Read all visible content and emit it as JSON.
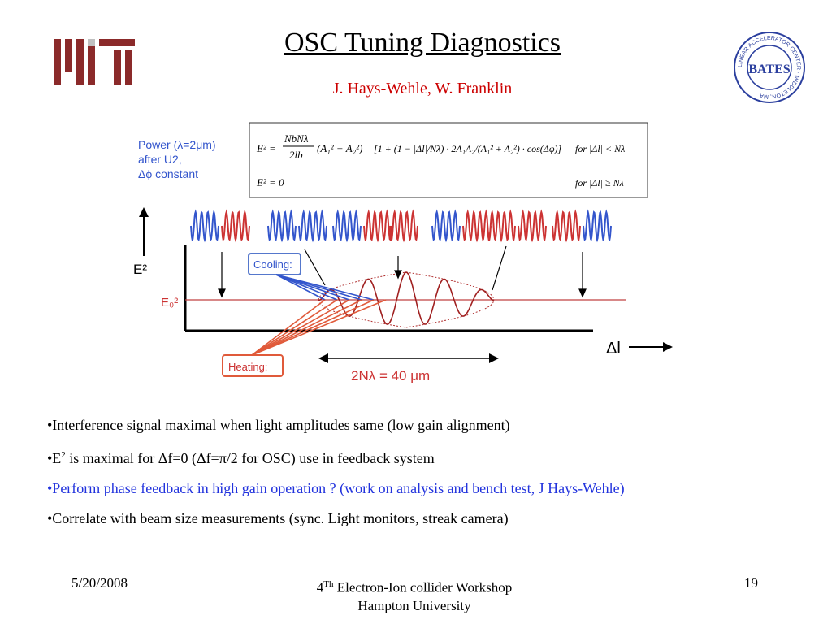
{
  "slide": {
    "title": "OSC Tuning Diagnostics",
    "authors": "J. Hays-Wehle, W. Franklin"
  },
  "logos": {
    "left": {
      "icon": "mit-logo",
      "color": "#8b2a2a"
    },
    "right": {
      "icon": "bates-seal",
      "outer_text": "LINEAR ACCELERATOR CENTER · MIDDLETON, MA",
      "center_text": "BATES",
      "color": "#2b3f9e"
    }
  },
  "figure": {
    "power_label": {
      "line1": "Power (λ=2μm)",
      "line2": "after U2,",
      "line3": "Δϕ constant"
    },
    "formula": {
      "eq1_lhs": "E² =",
      "eq1_frac1_num": "NbNλ",
      "eq1_frac1_den": "2lb",
      "eq1_amp_sum": "(A₁² + A₂²)",
      "eq1_bracket": "[1 + (1 − |Δl|/Nλ) · 2A₁A₂/(A₁² + A₂²) · cos(Δφ)]",
      "eq1_cond": "for |Δl| < Nλ",
      "eq2_lhs": "E² = 0",
      "eq2_cond": "for |Δl| ≥ Nλ"
    },
    "e2_label": "E²",
    "e0_label": "E₀²",
    "cooling_label": "Cooling:",
    "heating_label": "Heating:",
    "dl_label": "Δl",
    "span_label": "2Nλ = 40 μm",
    "colors": {
      "blue": "#3355cc",
      "red": "#cc3333",
      "heating_box": "#e05a3a",
      "cooling_box": "#5577cc"
    }
  },
  "bullets": [
    {
      "prefix": "•Interference signal maximal when light amplitudes same (low gain alignment)"
    },
    {
      "a": "•E",
      "sup": "2",
      "b": " is maximal for Δf=0 (Δf=π/2 for OSC) use in feedback system"
    },
    {
      "text": "•Perform phase feedback in high gain operation ? (work on analysis and bench test, J Hays-Wehle)",
      "color": "#2233dd"
    },
    {
      "text": "•Correlate with beam size measurements (sync. Light monitors, streak camera)"
    }
  ],
  "footer": {
    "date": "5/20/2008",
    "event_pre": "4",
    "event_sup": "Th",
    "event_post": " Electron-Ion collider Workshop",
    "event_line2": "Hampton University",
    "page": "19"
  }
}
